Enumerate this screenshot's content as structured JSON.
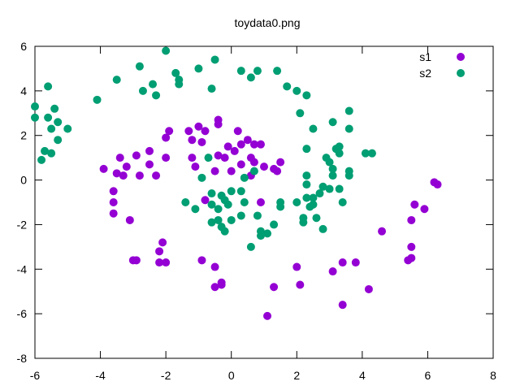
{
  "chart_data": {
    "type": "scatter",
    "title": "toydata0.png",
    "xlabel": "",
    "ylabel": "",
    "xlim": [
      -6,
      8
    ],
    "ylim": [
      -8,
      6
    ],
    "xticks": [
      "-6",
      "-4",
      "-2",
      "0",
      "2",
      "4",
      "6",
      "8"
    ],
    "yticks": [
      "-8",
      "-6",
      "-4",
      "-2",
      "0",
      "2",
      "4",
      "6"
    ],
    "grid": false,
    "legend_position": "top-right",
    "series": [
      {
        "name": "s1",
        "color": "#9400d3",
        "points": [
          [
            -1.9,
            2.2
          ],
          [
            -1.3,
            2.2
          ],
          [
            -1.0,
            2.4
          ],
          [
            -0.8,
            2.2
          ],
          [
            -0.4,
            2.5
          ],
          [
            -0.4,
            2.7
          ],
          [
            0.2,
            2.2
          ],
          [
            -2.0,
            1.9
          ],
          [
            -1.2,
            1.8
          ],
          [
            -0.9,
            1.7
          ],
          [
            -0.1,
            1.5
          ],
          [
            0.5,
            1.8
          ],
          [
            0.7,
            1.6
          ],
          [
            0.9,
            1.6
          ],
          [
            -2.9,
            1.1
          ],
          [
            -2.5,
            1.3
          ],
          [
            -2.0,
            1.0
          ],
          [
            -1.2,
            1.0
          ],
          [
            -0.4,
            1.1
          ],
          [
            -0.2,
            1.0
          ],
          [
            0.1,
            1.3
          ],
          [
            0.3,
            1.6
          ],
          [
            0.6,
            1.0
          ],
          [
            -3.4,
            1.0
          ],
          [
            -2.5,
            0.7
          ],
          [
            -2.8,
            0.2
          ],
          [
            -1.1,
            0.6
          ],
          [
            0.3,
            0.7
          ],
          [
            0.7,
            0.8
          ],
          [
            1.0,
            0.6
          ],
          [
            1.3,
            0.5
          ],
          [
            1.5,
            0.8
          ],
          [
            -3.9,
            0.5
          ],
          [
            -3.5,
            0.3
          ],
          [
            -3.2,
            0.6
          ],
          [
            -3.3,
            0.2
          ],
          [
            -2.3,
            0.2
          ],
          [
            -0.5,
            0.4
          ],
          [
            0.0,
            0.4
          ],
          [
            0.6,
            0.2
          ],
          [
            1.4,
            0.4
          ],
          [
            -3.6,
            -0.5
          ],
          [
            -3.6,
            -1.0
          ],
          [
            -3.6,
            -1.5
          ],
          [
            -0.8,
            -0.9
          ],
          [
            0.9,
            -1.0
          ],
          [
            -3.1,
            -1.8
          ],
          [
            -2.1,
            -2.8
          ],
          [
            -3.0,
            -3.6
          ],
          [
            -2.9,
            -3.6
          ],
          [
            -2.2,
            -3.2
          ],
          [
            -2.2,
            -3.7
          ],
          [
            -2.0,
            -3.7
          ],
          [
            -0.9,
            -3.6
          ],
          [
            -0.5,
            -3.9
          ],
          [
            -0.3,
            -4.6
          ],
          [
            -0.3,
            -4.7
          ],
          [
            -0.5,
            -4.8
          ],
          [
            1.3,
            -4.8
          ],
          [
            1.1,
            -6.1
          ],
          [
            2.0,
            -3.9
          ],
          [
            2.1,
            -4.7
          ],
          [
            3.1,
            -4.1
          ],
          [
            3.4,
            -3.7
          ],
          [
            3.8,
            -3.7
          ],
          [
            3.4,
            -5.6
          ],
          [
            4.2,
            -4.9
          ],
          [
            4.6,
            -2.3
          ],
          [
            5.4,
            -3.6
          ],
          [
            5.5,
            -3.5
          ],
          [
            5.5,
            -3.0
          ],
          [
            5.5,
            -1.8
          ],
          [
            5.6,
            -1.1
          ],
          [
            5.9,
            -1.3
          ],
          [
            6.2,
            -0.1
          ],
          [
            6.3,
            -0.2
          ]
        ]
      },
      {
        "name": "s2",
        "color": "#009e73",
        "points": [
          [
            -2.0,
            5.8
          ],
          [
            -0.5,
            5.4
          ],
          [
            -2.8,
            5.1
          ],
          [
            -1.7,
            4.8
          ],
          [
            -1.0,
            5.0
          ],
          [
            0.3,
            4.9
          ],
          [
            0.8,
            4.9
          ],
          [
            1.4,
            4.9
          ],
          [
            -3.5,
            4.5
          ],
          [
            -2.4,
            4.3
          ],
          [
            -1.6,
            4.5
          ],
          [
            -1.6,
            4.3
          ],
          [
            -0.6,
            4.1
          ],
          [
            0.6,
            4.6
          ],
          [
            1.7,
            4.2
          ],
          [
            2.0,
            4.0
          ],
          [
            2.3,
            3.8
          ],
          [
            -2.7,
            4.0
          ],
          [
            -2.3,
            3.8
          ],
          [
            -4.1,
            3.6
          ],
          [
            -5.6,
            4.2
          ],
          [
            -6.0,
            3.3
          ],
          [
            -5.4,
            3.2
          ],
          [
            -5.6,
            2.8
          ],
          [
            -6.0,
            2.8
          ],
          [
            -5.3,
            2.6
          ],
          [
            -5.5,
            2.3
          ],
          [
            -5.0,
            2.3
          ],
          [
            -5.7,
            1.3
          ],
          [
            -5.3,
            1.8
          ],
          [
            -5.5,
            1.2
          ],
          [
            -5.8,
            0.9
          ],
          [
            2.1,
            3.0
          ],
          [
            3.6,
            3.1
          ],
          [
            3.1,
            2.6
          ],
          [
            2.5,
            2.3
          ],
          [
            3.6,
            2.3
          ],
          [
            -0.7,
            1.0
          ],
          [
            2.3,
            1.4
          ],
          [
            3.2,
            1.4
          ],
          [
            3.3,
            1.5
          ],
          [
            2.9,
            1.0
          ],
          [
            3.0,
            0.8
          ],
          [
            3.3,
            1.2
          ],
          [
            4.1,
            1.2
          ],
          [
            4.3,
            1.2
          ],
          [
            0.7,
            0.4
          ],
          [
            0.4,
            0.1
          ],
          [
            2.3,
            0.2
          ],
          [
            3.1,
            0.5
          ],
          [
            3.1,
            0.2
          ],
          [
            3.6,
            0.4
          ],
          [
            3.6,
            0.2
          ],
          [
            -0.9,
            0.1
          ],
          [
            2.3,
            -0.2
          ],
          [
            2.8,
            -0.3
          ],
          [
            3.3,
            -0.4
          ],
          [
            -0.6,
            -0.6
          ],
          [
            -0.3,
            -0.7
          ],
          [
            0.0,
            -0.5
          ],
          [
            0.3,
            -0.5
          ],
          [
            2.3,
            -0.8
          ],
          [
            2.5,
            -0.8
          ],
          [
            2.7,
            -0.6
          ],
          [
            3.0,
            -0.4
          ],
          [
            3.4,
            -1.0
          ],
          [
            -1.4,
            -1.0
          ],
          [
            -1.1,
            -1.3
          ],
          [
            -0.6,
            -1.1
          ],
          [
            -0.4,
            -1.3
          ],
          [
            -0.2,
            -0.9
          ],
          [
            -0.1,
            -1.1
          ],
          [
            0.4,
            -1.0
          ],
          [
            1.5,
            -1.0
          ],
          [
            1.5,
            -1.2
          ],
          [
            2.0,
            -1.0
          ],
          [
            2.4,
            -1.2
          ],
          [
            2.5,
            -1.1
          ],
          [
            -0.4,
            -1.8
          ],
          [
            0.0,
            -1.8
          ],
          [
            0.3,
            -1.6
          ],
          [
            0.8,
            -1.6
          ],
          [
            1.3,
            -2.0
          ],
          [
            2.2,
            -1.7
          ],
          [
            2.2,
            -1.9
          ],
          [
            2.6,
            -1.7
          ],
          [
            -0.6,
            -1.9
          ],
          [
            -0.3,
            -2.1
          ],
          [
            -0.2,
            -2.3
          ],
          [
            0.9,
            -2.3
          ],
          [
            1.1,
            -2.4
          ],
          [
            0.9,
            -2.5
          ],
          [
            2.8,
            -2.2
          ],
          [
            0.6,
            -3.0
          ]
        ]
      }
    ]
  }
}
